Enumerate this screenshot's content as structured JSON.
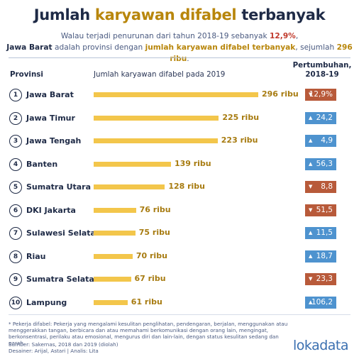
{
  "header": {
    "title_part1": "Jumlah ",
    "title_highlight": "karyawan difabel",
    "title_part2": " terbanyak",
    "subtitle_a": "Walau terjadi penurunan dari tahun 2018-19 sebanyak ",
    "subtitle_pct": "12,9%",
    "subtitle_b": ",",
    "subtitle_prov": "Jawa Barat",
    "subtitle_c": " adalah provinsi dengan ",
    "subtitle_highlight": "jumlah karyawan difabel terbanyak",
    "subtitle_d": ", sejumlah ",
    "subtitle_count": "296 ribu",
    "subtitle_e": "."
  },
  "columns": {
    "province": "Provinsi",
    "bar": "Jumlah karyawan difabel pada 2019",
    "growth_line1": "Pertumbuhan,",
    "growth_line2": "2018-19"
  },
  "chart_data": {
    "type": "bar",
    "orientation": "horizontal",
    "xlabel": "Jumlah karyawan difabel pada 2019",
    "unit": "ribu",
    "xlim": [
      0,
      296
    ],
    "colors": {
      "bar": "#f3c64b",
      "down": "#b85a3a",
      "up": "#4e93cf"
    },
    "rows": [
      {
        "rank": "1",
        "province": "Jawa Barat",
        "value": 296,
        "label": "296 ribu",
        "growth": "12,9%",
        "direction": "down"
      },
      {
        "rank": "2",
        "province": "Jawa Timur",
        "value": 225,
        "label": "225 ribu",
        "growth": "24,2",
        "direction": "up"
      },
      {
        "rank": "3",
        "province": "Jawa Tengah",
        "value": 223,
        "label": "223 ribu",
        "growth": "4,9",
        "direction": "up"
      },
      {
        "rank": "4",
        "province": "Banten",
        "value": 139,
        "label": "139 ribu",
        "growth": "56,3",
        "direction": "up"
      },
      {
        "rank": "5",
        "province": "Sumatra Utara",
        "value": 128,
        "label": "128 ribu",
        "growth": "8,8",
        "direction": "down"
      },
      {
        "rank": "6",
        "province": "DKI Jakarta",
        "value": 76,
        "label": "76 ribu",
        "growth": "51,5",
        "direction": "down"
      },
      {
        "rank": "7",
        "province": "Sulawesi Selatan",
        "value": 75,
        "label": "75 ribu",
        "growth": "11,5",
        "direction": "up"
      },
      {
        "rank": "8",
        "province": "Riau",
        "value": 70,
        "label": "70 ribu",
        "growth": "18,7",
        "direction": "up"
      },
      {
        "rank": "9",
        "province": "Sumatra Selatan",
        "value": 67,
        "label": "67 ribu",
        "growth": "23,3",
        "direction": "down"
      },
      {
        "rank": "10",
        "province": "Lampung",
        "value": 61,
        "label": "61 ribu",
        "growth": "106,2",
        "direction": "up"
      }
    ]
  },
  "footer": {
    "footnote": "* Pekerja difabel: Pekerja yang mengalami kesulitan penglihatan, pendengaran, berjalan, menggunakan atau menggerakkan tangan, berbicara dan atau memahami berkomunikasi dengan orang lain, mengingat, berkonsentrasi, perilaku atau emosional, mengurus diri dan lain-lain, dengan status kesulitan sedang dan parah.",
    "source": "Sumber: Sakernas, 2018 dan 2019 (diolah)",
    "credits": "Desainer: Arijal, Astari | Analis: Lita",
    "logo": "lokadata"
  }
}
